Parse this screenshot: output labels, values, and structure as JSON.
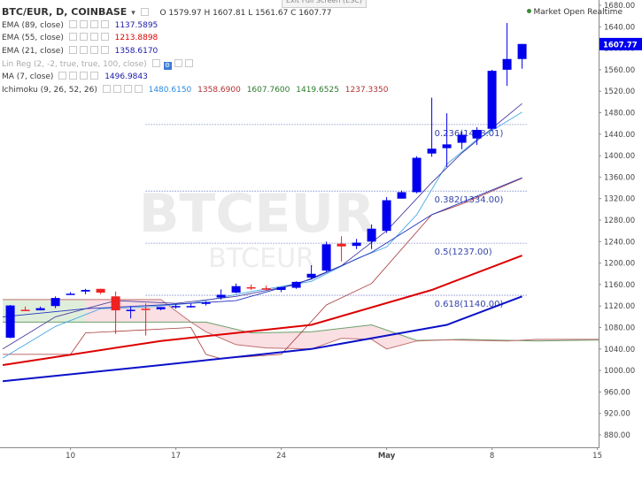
{
  "header": {
    "symbol": "BTC/EUR, D, COINBASE",
    "ohlc": "O 1579.97  H 1607.81  L 1561.67  C 1607.77",
    "market_status": "Market Open",
    "market_mode": "Realtime",
    "exit_fullscreen": "Exit Full Screen (ESC)"
  },
  "indicators": [
    {
      "label": "EMA (89, close)",
      "value": "1137.5895",
      "color": "#1a1aaa"
    },
    {
      "label": "EMA (55, close)",
      "value": "1213.8898",
      "color": "#dd0000"
    },
    {
      "label": "EMA (21, close)",
      "value": "1358.6170",
      "color": "#1a1aaa"
    },
    {
      "label": "Lin Reg (2, -2, true, true, 100, close)",
      "value": "",
      "color": "#aaaaaa"
    },
    {
      "label": "MA (7, close)",
      "value": "1496.9843",
      "color": "#1a1aaa"
    },
    {
      "label": "Ichimoku (9, 26, 52, 26)",
      "values": [
        "1480.6150",
        "1358.6900",
        "1607.7600",
        "1419.6525",
        "1237.3350"
      ],
      "colors": [
        "#2a8ae0",
        "#b03030",
        "#2a7a2a",
        "#2a7a2a",
        "#b03030"
      ]
    }
  ],
  "watermark": {
    "line1": "BTCEUR",
    "line2": "BTCEUR"
  },
  "chart_data": {
    "type": "candlestick",
    "ylim": [
      840,
      1700
    ],
    "y_ticks": [
      "1680.00",
      "1640.00",
      "1600.00",
      "1560.00",
      "1520.00",
      "1480.00",
      "1440.00",
      "1400.00",
      "1360.00",
      "1320.00",
      "1280.00",
      "1240.00",
      "1200.00",
      "1160.00",
      "1120.00",
      "1080.00",
      "1040.00",
      "1000.00",
      "960.00",
      "920.00",
      "880.00"
    ],
    "x_ticks": [
      {
        "label": "10",
        "index": 4
      },
      {
        "label": "17",
        "index": 11
      },
      {
        "label": "24",
        "index": 18
      },
      {
        "label": "May",
        "index": 25
      },
      {
        "label": "8",
        "index": 32
      },
      {
        "label": "15",
        "index": 39
      }
    ],
    "x_count": 40,
    "last_price": "1607.77",
    "candles": [
      [
        1061,
        1122,
        1060,
        1121,
        "up"
      ],
      [
        1112,
        1119,
        1112,
        1113,
        "down"
      ],
      [
        1112,
        1119,
        1112,
        1116,
        "up"
      ],
      [
        1120,
        1138,
        1116,
        1135,
        "up"
      ],
      [
        1143,
        1146,
        1141,
        1143,
        "up"
      ],
      [
        1147,
        1152,
        1142,
        1150,
        "up"
      ],
      [
        1152,
        1152,
        1142,
        1145,
        "down"
      ],
      [
        1138,
        1147,
        1068,
        1112,
        "down"
      ],
      [
        1111,
        1119,
        1097,
        1113,
        "up"
      ],
      [
        1115,
        1125,
        1065,
        1113,
        "down"
      ],
      [
        1114,
        1118,
        1112,
        1118,
        "up"
      ],
      [
        1118,
        1123,
        1115,
        1120,
        "up"
      ],
      [
        1118,
        1125,
        1117,
        1120,
        "up"
      ],
      [
        1124,
        1129,
        1121,
        1127,
        "up"
      ],
      [
        1136,
        1151,
        1132,
        1141,
        "up"
      ],
      [
        1145,
        1162,
        1144,
        1157,
        "up"
      ],
      [
        1155,
        1160,
        1150,
        1154,
        "down"
      ],
      [
        1153,
        1158,
        1150,
        1152,
        "down"
      ],
      [
        1150,
        1156,
        1146,
        1155,
        "up"
      ],
      [
        1154,
        1166,
        1152,
        1165,
        "up"
      ],
      [
        1173,
        1196,
        1170,
        1180,
        "up"
      ],
      [
        1186,
        1240,
        1184,
        1235,
        "up"
      ],
      [
        1236,
        1250,
        1203,
        1231,
        "down"
      ],
      [
        1232,
        1245,
        1226,
        1238,
        "up"
      ],
      [
        1240,
        1272,
        1226,
        1264,
        "up"
      ],
      [
        1260,
        1323,
        1256,
        1317,
        "up"
      ],
      [
        1320,
        1335,
        1320,
        1332,
        "up"
      ],
      [
        1332,
        1399,
        1330,
        1396,
        "up"
      ],
      [
        1404,
        1508,
        1398,
        1413,
        "up"
      ],
      [
        1414,
        1479,
        1379,
        1421,
        "up"
      ],
      [
        1424,
        1445,
        1412,
        1439,
        "up"
      ],
      [
        1432,
        1453,
        1420,
        1448,
        "up"
      ],
      [
        1450,
        1560,
        1446,
        1558,
        "up"
      ],
      [
        1560,
        1647,
        1530,
        1580,
        "up"
      ],
      [
        1580,
        1608,
        1562,
        1608,
        "up"
      ]
    ],
    "ema89": [
      [
        -0.5,
        980
      ],
      [
        10,
        1010
      ],
      [
        20,
        1040
      ],
      [
        29,
        1085
      ],
      [
        34,
        1138
      ]
    ],
    "ema55": [
      [
        -0.5,
        1010
      ],
      [
        10,
        1055
      ],
      [
        20,
        1085
      ],
      [
        28,
        1150
      ],
      [
        34,
        1214
      ]
    ],
    "ema21": [
      [
        -0.5,
        1100
      ],
      [
        5,
        1115
      ],
      [
        10,
        1122
      ],
      [
        15,
        1130
      ],
      [
        20,
        1170
      ],
      [
        24,
        1220
      ],
      [
        28,
        1290
      ],
      [
        34,
        1359
      ]
    ],
    "ma7": [
      [
        -0.5,
        1040
      ],
      [
        3,
        1100
      ],
      [
        7,
        1130
      ],
      [
        11,
        1125
      ],
      [
        15,
        1138
      ],
      [
        19,
        1160
      ],
      [
        22,
        1195
      ],
      [
        25,
        1260
      ],
      [
        28,
        1350
      ],
      [
        30,
        1405
      ],
      [
        34,
        1497
      ]
    ],
    "conversion": [
      [
        -0.5,
        1023
      ],
      [
        3,
        1082
      ],
      [
        6,
        1115
      ],
      [
        9,
        1118
      ],
      [
        12,
        1125
      ],
      [
        16,
        1147
      ],
      [
        20,
        1166
      ],
      [
        23,
        1208
      ],
      [
        25,
        1230
      ],
      [
        27,
        1290
      ],
      [
        29,
        1384
      ],
      [
        31,
        1430
      ],
      [
        34,
        1481
      ]
    ],
    "baseline": [
      [
        -0.5,
        1030
      ],
      [
        4,
        1030
      ],
      [
        5,
        1070
      ],
      [
        12,
        1080
      ],
      [
        13,
        1030
      ],
      [
        14,
        1022
      ],
      [
        18,
        1030
      ],
      [
        21,
        1122
      ],
      [
        24,
        1162
      ],
      [
        28,
        1290
      ],
      [
        30,
        1310
      ],
      [
        34,
        1358
      ]
    ],
    "span_a": [
      [
        -0.5,
        1090
      ],
      [
        5,
        1090
      ],
      [
        13,
        1090
      ],
      [
        16,
        1070
      ],
      [
        20,
        1072
      ],
      [
        24,
        1085
      ],
      [
        27,
        1056
      ],
      [
        30,
        1058
      ],
      [
        35,
        1055
      ],
      [
        39.5,
        1057
      ]
    ],
    "span_b": [
      [
        -0.5,
        1132
      ],
      [
        5,
        1132
      ],
      [
        10,
        1132
      ],
      [
        12,
        1090
      ],
      [
        13,
        1072
      ],
      [
        15,
        1048
      ],
      [
        17,
        1042
      ],
      [
        20,
        1040
      ],
      [
        22,
        1060
      ],
      [
        24,
        1058
      ],
      [
        25,
        1040
      ],
      [
        27,
        1055
      ],
      [
        29,
        1057
      ],
      [
        33,
        1055
      ],
      [
        35,
        1058
      ],
      [
        39.5,
        1058
      ]
    ],
    "fib_levels": [
      {
        "label": "0.236(1458.01)",
        "value": 1458.01,
        "color": "#3344aa"
      },
      {
        "label": "0.382(1334.00)",
        "value": 1334.0,
        "color": "#3344aa"
      },
      {
        "label": "0.5(1237.00)",
        "value": 1237.0,
        "color": "#3344aa"
      },
      {
        "label": "0.618(1140.00)",
        "value": 1140.0,
        "color": "#3344aa"
      }
    ],
    "fib_x_start": 9
  }
}
